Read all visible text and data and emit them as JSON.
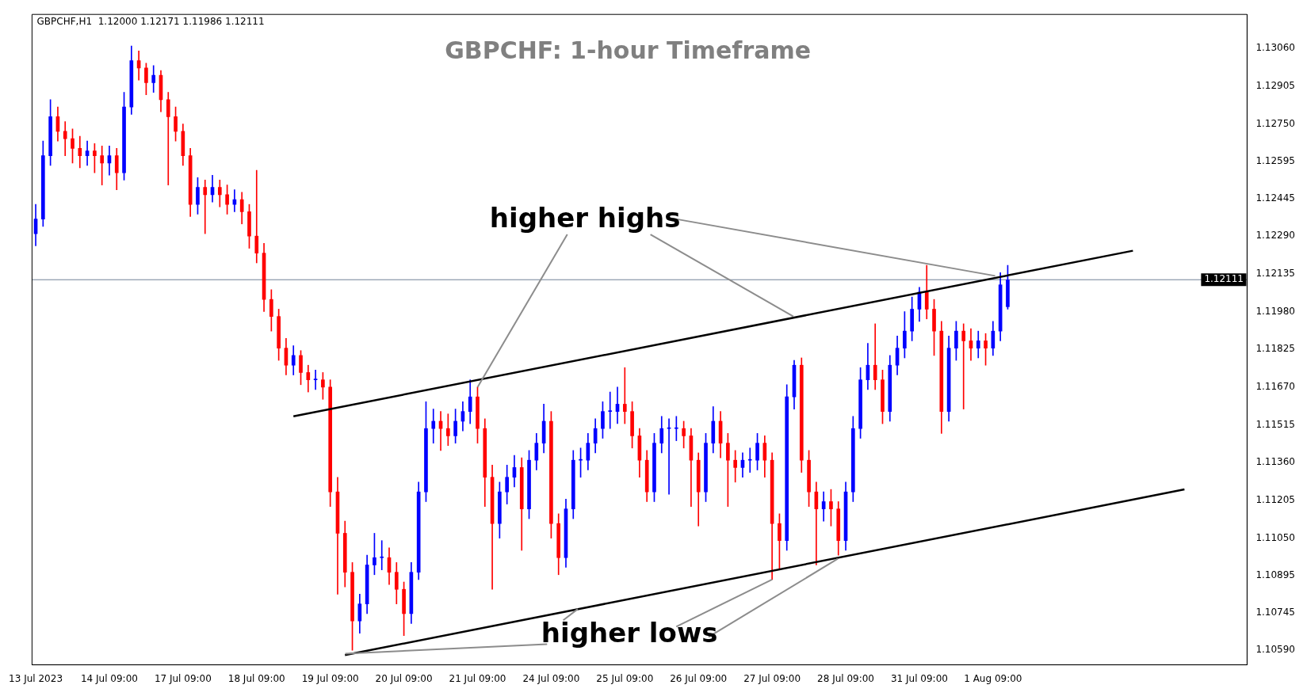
{
  "chart_data": {
    "type": "candlestick",
    "title": "GBPCHF: 1-hour Timeframe",
    "annotations": [
      "GBPCHF,H1  1.12000 1.12171 1.11986 1.12111",
      {
        "text": "higher highs",
        "x": "21 Jul 09:00",
        "y": 1.1167
      },
      {
        "text": "higher lows",
        "x": "27 Jul 09:00",
        "y": 1.1088
      }
    ],
    "categories": [
      "13 Jul 2023",
      null,
      null,
      null,
      null,
      null,
      null,
      null,
      null,
      null,
      "14 Jul 09:00",
      null,
      null,
      null,
      null,
      null,
      null,
      null,
      null,
      null,
      "17 Jul 09:00",
      null,
      null,
      null,
      null,
      null,
      null,
      null,
      null,
      null,
      "18 Jul 09:00",
      null,
      null,
      null,
      null,
      null,
      null,
      null,
      null,
      null,
      "19 Jul 09:00",
      null,
      null,
      null,
      null,
      null,
      null,
      null,
      null,
      null,
      "20 Jul 09:00",
      null,
      null,
      null,
      null,
      null,
      null,
      null,
      null,
      null,
      "21 Jul 09:00",
      null,
      null,
      null,
      null,
      null,
      null,
      null,
      null,
      null,
      "24 Jul 09:00",
      null,
      null,
      null,
      null,
      null,
      null,
      null,
      null,
      null,
      "25 Jul 09:00",
      null,
      null,
      null,
      null,
      null,
      null,
      null,
      null,
      null,
      "26 Jul 09:00",
      null,
      null,
      null,
      null,
      null,
      null,
      null,
      null,
      null,
      "27 Jul 09:00",
      null,
      null,
      null,
      null,
      null,
      null,
      null,
      null,
      null,
      "28 Jul 09:00",
      null,
      null,
      null,
      null,
      null,
      null,
      null,
      null,
      null,
      "31 Jul 09:00",
      null,
      null,
      null,
      null,
      null,
      null,
      null,
      null,
      null,
      "1 Aug 09:00",
      null,
      null,
      null,
      null,
      null,
      null,
      null,
      null,
      null,
      null,
      null,
      null,
      null,
      null,
      null,
      null,
      null,
      null,
      null,
      null,
      null,
      null,
      null,
      null,
      null,
      null,
      null,
      null,
      null,
      null,
      null,
      null,
      null,
      null
    ],
    "series": [
      {
        "ohlc": [
          [
            1.123,
            1.1242,
            1.1225,
            1.1236
          ],
          [
            1.1236,
            1.1268,
            1.1233,
            1.1262
          ],
          [
            1.1262,
            1.1285,
            1.1258,
            1.1278
          ],
          [
            1.1278,
            1.1282,
            1.1268,
            1.1272
          ],
          [
            1.1272,
            1.1276,
            1.1262,
            1.1269
          ],
          [
            1.1269,
            1.1273,
            1.1259,
            1.1265
          ],
          [
            1.1265,
            1.127,
            1.1257,
            1.1262
          ],
          [
            1.1262,
            1.1268,
            1.1258,
            1.1264
          ],
          [
            1.1264,
            1.1267,
            1.1255,
            1.1262
          ],
          [
            1.1262,
            1.1266,
            1.125,
            1.1259
          ],
          [
            1.1259,
            1.1266,
            1.1254,
            1.1262
          ],
          [
            1.1262,
            1.1265,
            1.1248,
            1.1255
          ],
          [
            1.1255,
            1.1288,
            1.1252,
            1.1282
          ],
          [
            1.1282,
            1.1307,
            1.1279,
            1.1301
          ],
          [
            1.1301,
            1.1305,
            1.1293,
            1.1298
          ],
          [
            1.1298,
            1.13,
            1.1287,
            1.1292
          ],
          [
            1.1292,
            1.1299,
            1.1288,
            1.1295
          ],
          [
            1.1295,
            1.1297,
            1.128,
            1.1285
          ],
          [
            1.1285,
            1.1288,
            1.125,
            1.1278
          ],
          [
            1.1278,
            1.1282,
            1.1268,
            1.1272
          ],
          [
            1.1272,
            1.1275,
            1.1258,
            1.1262
          ],
          [
            1.1262,
            1.1265,
            1.1237,
            1.1242
          ],
          [
            1.1242,
            1.1253,
            1.1238,
            1.1249
          ],
          [
            1.1249,
            1.1252,
            1.123,
            1.1246
          ],
          [
            1.1246,
            1.1254,
            1.1243,
            1.1249
          ],
          [
            1.1249,
            1.1252,
            1.1241,
            1.1246
          ],
          [
            1.1246,
            1.125,
            1.1238,
            1.1242
          ],
          [
            1.1242,
            1.1248,
            1.1239,
            1.1244
          ],
          [
            1.1244,
            1.1247,
            1.1234,
            1.1239
          ],
          [
            1.1239,
            1.1242,
            1.1224,
            1.1229
          ],
          [
            1.1229,
            1.1256,
            1.1218,
            1.1222
          ],
          [
            1.1222,
            1.1226,
            1.1198,
            1.1203
          ],
          [
            1.1203,
            1.1207,
            1.119,
            1.1196
          ],
          [
            1.1196,
            1.1199,
            1.1178,
            1.1183
          ],
          [
            1.1183,
            1.1187,
            1.1172,
            1.1176
          ],
          [
            1.1176,
            1.1184,
            1.1172,
            1.118
          ],
          [
            1.118,
            1.1182,
            1.1168,
            1.1173
          ],
          [
            1.1173,
            1.1176,
            1.1165,
            1.117
          ],
          [
            1.117,
            1.1174,
            1.1166,
            1.117
          ],
          [
            1.117,
            1.1173,
            1.1162,
            1.1167
          ],
          [
            1.1167,
            1.117,
            1.1118,
            1.1124
          ],
          [
            1.1124,
            1.113,
            1.1082,
            1.1107
          ],
          [
            1.1107,
            1.1112,
            1.1085,
            1.1091
          ],
          [
            1.1091,
            1.1095,
            1.1059,
            1.1071
          ],
          [
            1.1071,
            1.1082,
            1.1066,
            1.1078
          ],
          [
            1.1078,
            1.1098,
            1.1074,
            1.1094
          ],
          [
            1.1094,
            1.1107,
            1.109,
            1.1097
          ],
          [
            1.1097,
            1.1104,
            1.1092,
            1.1097
          ],
          [
            1.1097,
            1.1101,
            1.1086,
            1.1091
          ],
          [
            1.1091,
            1.1095,
            1.1078,
            1.1084
          ],
          [
            1.1084,
            1.1087,
            1.1065,
            1.1074
          ],
          [
            1.1074,
            1.1095,
            1.107,
            1.1091
          ],
          [
            1.1091,
            1.1128,
            1.1088,
            1.1124
          ],
          [
            1.1124,
            1.1161,
            1.112,
            1.115
          ],
          [
            1.115,
            1.1158,
            1.1144,
            1.1153
          ],
          [
            1.1153,
            1.1157,
            1.1141,
            1.115
          ],
          [
            1.115,
            1.1156,
            1.1143,
            1.1147
          ],
          [
            1.1147,
            1.1158,
            1.1144,
            1.1153
          ],
          [
            1.1153,
            1.1161,
            1.1149,
            1.1157
          ],
          [
            1.1157,
            1.117,
            1.1152,
            1.1163
          ],
          [
            1.1163,
            1.1167,
            1.1144,
            1.115
          ],
          [
            1.115,
            1.1154,
            1.1118,
            1.113
          ],
          [
            1.113,
            1.1135,
            1.1084,
            1.1111
          ],
          [
            1.1111,
            1.1128,
            1.1105,
            1.1124
          ],
          [
            1.1124,
            1.1135,
            1.1119,
            1.113
          ],
          [
            1.113,
            1.1139,
            1.1126,
            1.1134
          ],
          [
            1.1134,
            1.1138,
            1.11,
            1.1117
          ],
          [
            1.1117,
            1.1141,
            1.1113,
            1.1137
          ],
          [
            1.1137,
            1.1148,
            1.1133,
            1.1144
          ],
          [
            1.1144,
            1.116,
            1.114,
            1.1153
          ],
          [
            1.1153,
            1.1157,
            1.1105,
            1.1111
          ],
          [
            1.1111,
            1.1115,
            1.109,
            1.1097
          ],
          [
            1.1097,
            1.1121,
            1.1093,
            1.1117
          ],
          [
            1.1117,
            1.1141,
            1.1113,
            1.1137
          ],
          [
            1.1137,
            1.1142,
            1.113,
            1.1137
          ],
          [
            1.1137,
            1.1148,
            1.1133,
            1.1144
          ],
          [
            1.1144,
            1.1154,
            1.114,
            1.115
          ],
          [
            1.115,
            1.1161,
            1.1146,
            1.1157
          ],
          [
            1.1157,
            1.1165,
            1.115,
            1.1157
          ],
          [
            1.1157,
            1.1167,
            1.1152,
            1.116
          ],
          [
            1.116,
            1.1175,
            1.1152,
            1.1157
          ],
          [
            1.1157,
            1.1161,
            1.1142,
            1.1147
          ],
          [
            1.1147,
            1.115,
            1.113,
            1.1137
          ],
          [
            1.1137,
            1.1141,
            1.112,
            1.1124
          ],
          [
            1.1124,
            1.1148,
            1.112,
            1.1144
          ],
          [
            1.1144,
            1.1155,
            1.114,
            1.115
          ],
          [
            1.115,
            1.1154,
            1.1123,
            1.115
          ],
          [
            1.115,
            1.1155,
            1.1145,
            1.115
          ],
          [
            1.115,
            1.1153,
            1.1142,
            1.1147
          ],
          [
            1.1147,
            1.115,
            1.1118,
            1.1137
          ],
          [
            1.1137,
            1.114,
            1.111,
            1.1124
          ],
          [
            1.1124,
            1.1148,
            1.112,
            1.1144
          ],
          [
            1.1144,
            1.1159,
            1.114,
            1.1153
          ],
          [
            1.1153,
            1.1157,
            1.1138,
            1.1144
          ],
          [
            1.1144,
            1.1148,
            1.1118,
            1.1137
          ],
          [
            1.1137,
            1.1141,
            1.1128,
            1.1134
          ],
          [
            1.1134,
            1.114,
            1.113,
            1.1137
          ],
          [
            1.1137,
            1.1142,
            1.1132,
            1.1137
          ],
          [
            1.1137,
            1.1148,
            1.1133,
            1.1144
          ],
          [
            1.1144,
            1.1147,
            1.113,
            1.1137
          ],
          [
            1.1137,
            1.114,
            1.1088,
            1.1111
          ],
          [
            1.1111,
            1.1115,
            1.1092,
            1.1104
          ],
          [
            1.1104,
            1.1168,
            1.11,
            1.1163
          ],
          [
            1.1163,
            1.1178,
            1.1158,
            1.1176
          ],
          [
            1.1176,
            1.1179,
            1.1132,
            1.1137
          ],
          [
            1.1137,
            1.1141,
            1.1118,
            1.1124
          ],
          [
            1.1124,
            1.1128,
            1.1094,
            1.1117
          ],
          [
            1.1117,
            1.1124,
            1.1112,
            1.112
          ],
          [
            1.112,
            1.1125,
            1.111,
            1.1117
          ],
          [
            1.1117,
            1.112,
            1.1098,
            1.1104
          ],
          [
            1.1104,
            1.1128,
            1.11,
            1.1124
          ],
          [
            1.1124,
            1.1155,
            1.112,
            1.115
          ],
          [
            1.115,
            1.1175,
            1.1146,
            1.117
          ],
          [
            1.117,
            1.1185,
            1.1166,
            1.1176
          ],
          [
            1.1176,
            1.1193,
            1.1166,
            1.117
          ],
          [
            1.117,
            1.1174,
            1.1152,
            1.1157
          ],
          [
            1.1157,
            1.118,
            1.1153,
            1.1176
          ],
          [
            1.1176,
            1.1188,
            1.1172,
            1.1183
          ],
          [
            1.1183,
            1.1198,
            1.1179,
            1.119
          ],
          [
            1.119,
            1.1204,
            1.1186,
            1.1199
          ],
          [
            1.1199,
            1.1208,
            1.1194,
            1.1206
          ],
          [
            1.1206,
            1.1217,
            1.1195,
            1.1199
          ],
          [
            1.1199,
            1.1203,
            1.118,
            1.119
          ],
          [
            1.119,
            1.1194,
            1.1148,
            1.1157
          ],
          [
            1.1157,
            1.1188,
            1.1153,
            1.1183
          ],
          [
            1.1183,
            1.1194,
            1.1178,
            1.119
          ],
          [
            1.119,
            1.1193,
            1.1158,
            1.1186
          ],
          [
            1.1186,
            1.1191,
            1.1178,
            1.1183
          ],
          [
            1.1183,
            1.119,
            1.1179,
            1.1186
          ],
          [
            1.1186,
            1.1189,
            1.1176,
            1.1183
          ],
          [
            1.1183,
            1.1194,
            1.118,
            1.119
          ],
          [
            1.119,
            1.1214,
            1.1186,
            1.1209
          ],
          [
            1.12,
            1.1217,
            1.1199,
            1.1211
          ],
          null,
          null,
          null,
          null,
          null,
          null,
          null,
          null,
          null,
          null,
          null,
          null,
          null,
          null,
          null,
          null,
          null,
          null,
          null,
          null,
          null,
          null,
          null,
          null,
          null,
          null,
          null,
          null,
          null,
          null,
          null,
          null
        ]
      },
      {
        "type": "line",
        "color": "#000000",
        "values": [
          null,
          null,
          null,
          null,
          null,
          null,
          null,
          null,
          null,
          null,
          null,
          null,
          null,
          null,
          null,
          null,
          null,
          null,
          null,
          null,
          null,
          null,
          null,
          null,
          null,
          null,
          null,
          null,
          null,
          null,
          null,
          null,
          null,
          null,
          null,
          1.1155,
          null,
          null,
          null,
          null,
          null,
          null,
          null,
          null,
          null,
          null,
          null,
          null,
          null,
          null,
          null,
          null,
          null,
          null,
          null,
          null,
          null,
          null,
          null,
          null,
          null,
          null,
          null,
          null,
          null,
          null,
          null,
          null,
          null,
          null,
          null,
          null,
          null,
          null,
          null,
          null,
          null,
          null,
          null,
          null,
          null,
          null,
          null,
          null,
          null,
          null,
          null,
          null,
          null,
          null,
          null,
          null,
          null,
          null,
          null,
          null,
          null,
          null,
          null,
          null,
          null,
          null,
          null,
          null,
          null,
          null,
          null,
          null,
          null,
          null,
          null,
          null,
          null,
          null,
          null,
          null,
          null,
          null,
          null,
          null,
          null,
          null,
          null,
          null,
          null,
          null,
          null,
          null,
          null,
          null,
          null,
          null,
          null,
          null,
          null,
          null,
          null,
          null,
          null,
          null,
          null,
          null,
          null,
          null,
          null,
          null,
          null,
          null,
          null,
          1.1223,
          null,
          null,
          null,
          null,
          null,
          null,
          null,
          null,
          null,
          null,
          null,
          null,
          null,
          null,
          null
        ]
      },
      {
        "type": "line",
        "color": "#000000",
        "values": [
          null,
          null,
          null,
          null,
          null,
          null,
          null,
          null,
          null,
          null,
          null,
          null,
          null,
          null,
          null,
          null,
          null,
          null,
          null,
          null,
          null,
          null,
          null,
          null,
          null,
          null,
          null,
          null,
          null,
          null,
          null,
          null,
          null,
          null,
          null,
          null,
          null,
          null,
          null,
          null,
          null,
          null,
          1.1057,
          null,
          null,
          null,
          null,
          null,
          null,
          null,
          null,
          null,
          null,
          null,
          null,
          null,
          null,
          null,
          null,
          null,
          null,
          null,
          null,
          null,
          null,
          null,
          null,
          null,
          null,
          null,
          null,
          null,
          null,
          null,
          null,
          null,
          null,
          null,
          null,
          null,
          null,
          null,
          null,
          null,
          null,
          null,
          null,
          null,
          null,
          null,
          null,
          null,
          null,
          null,
          null,
          null,
          null,
          null,
          null,
          null,
          null,
          null,
          null,
          null,
          null,
          null,
          null,
          null,
          null,
          null,
          null,
          null,
          null,
          null,
          null,
          null,
          null,
          null,
          null,
          null,
          null,
          null,
          null,
          null,
          null,
          null,
          null,
          null,
          null,
          null,
          null,
          null,
          null,
          null,
          null,
          null,
          null,
          null,
          null,
          null,
          null,
          null,
          null,
          null,
          null,
          null,
          null,
          null,
          null,
          null,
          null,
          null,
          null,
          null,
          null,
          null,
          1.1125,
          null,
          null,
          null,
          null,
          null,
          null,
          null,
          null
        ]
      }
    ],
    "ylim": [
      1.1053,
      1.132
    ],
    "yticks": [
      {
        "value": 1.1059,
        "label": "1.10590"
      },
      {
        "value": 1.10745,
        "label": "1.10745"
      },
      {
        "value": 1.10895,
        "label": "1.10895"
      },
      {
        "value": 1.1105,
        "label": "1.11050"
      },
      {
        "value": 1.11205,
        "label": "1.11205"
      },
      {
        "value": 1.1136,
        "label": "1.11360"
      },
      {
        "value": 1.11515,
        "label": "1.11515"
      },
      {
        "value": 1.1167,
        "label": "1.11670"
      },
      {
        "value": 1.11825,
        "label": "1.11825"
      },
      {
        "value": 1.1198,
        "label": "1.11980"
      },
      {
        "value": 1.12135,
        "label": "1.12135"
      },
      {
        "value": 1.1229,
        "label": "1.12290"
      },
      {
        "value": 1.12445,
        "label": "1.12445"
      },
      {
        "value": 1.12595,
        "label": "1.12595"
      },
      {
        "value": 1.1275,
        "label": "1.12750"
      },
      {
        "value": 1.12905,
        "label": "1.12905"
      },
      {
        "value": 1.1306,
        "label": "1.13060"
      }
    ],
    "ref_lines": [
      {
        "axis": "y",
        "value": 1.12111,
        "label": "1.12111",
        "color": "#6f8296"
      }
    ],
    "grid": false,
    "legend": false
  }
}
